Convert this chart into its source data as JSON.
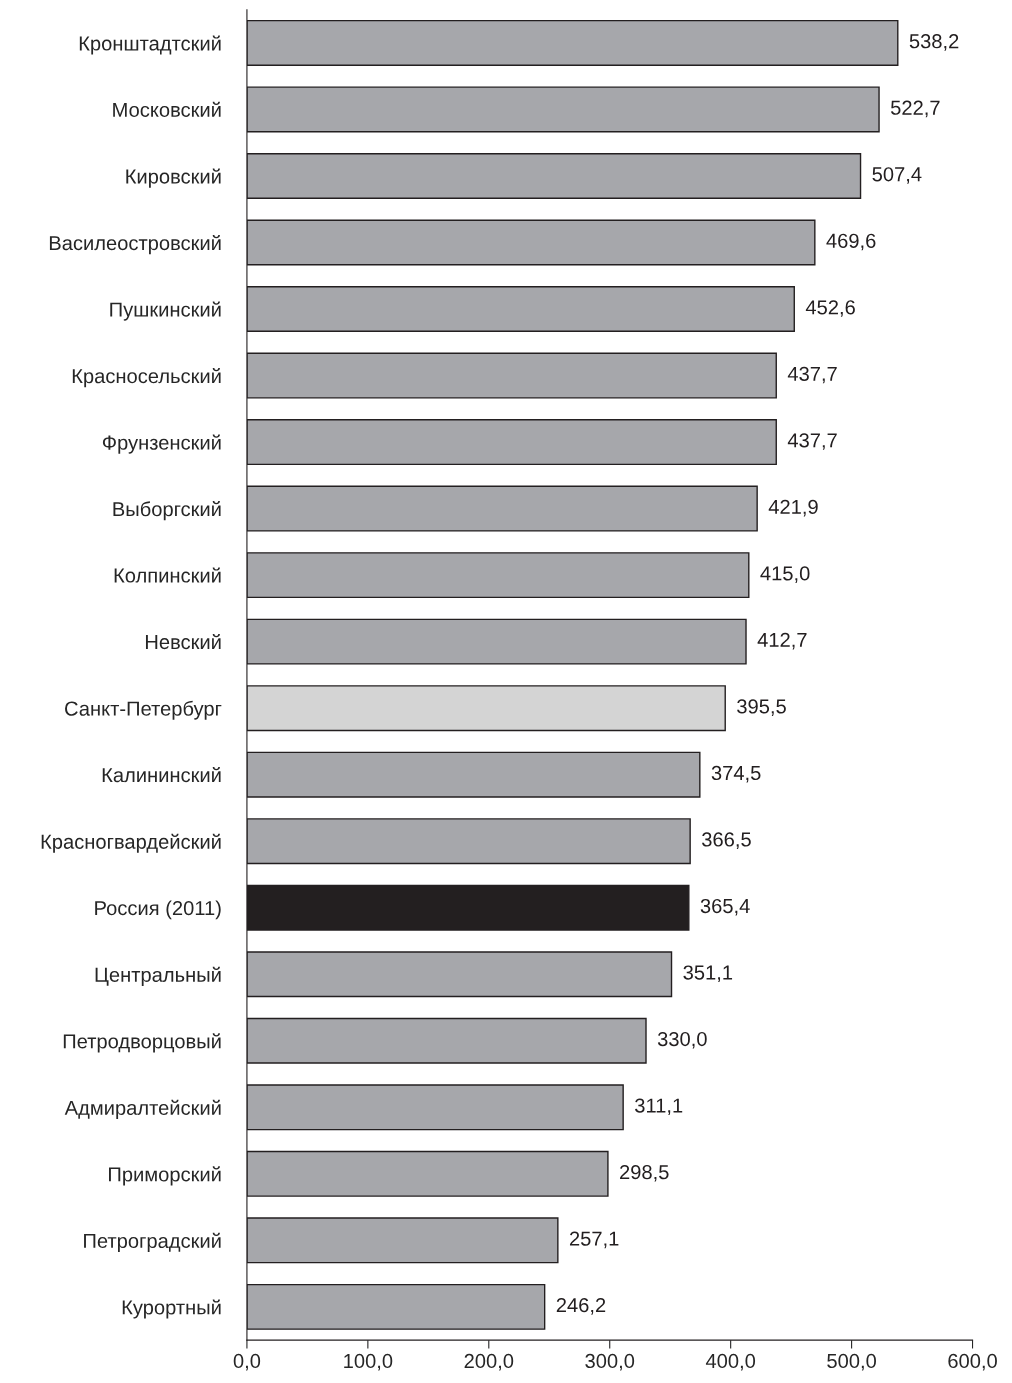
{
  "chart_data": {
    "type": "bar",
    "orientation": "horizontal",
    "categories": [
      "Кронштадтский",
      "Московский",
      "Кировский",
      "Василеостровский",
      "Пушкинский",
      "Красносельский",
      "Фрунзенский",
      "Выборгский",
      "Колпинский",
      "Невский",
      "Санкт-Петербург",
      "Калининский",
      "Красногвардейский",
      "Россия (2011)",
      "Центральный",
      "Петродворцовый",
      "Адмиралтейский",
      "Приморский",
      "Петроградский",
      "Курортный"
    ],
    "values": [
      538.2,
      522.7,
      507.4,
      469.6,
      452.6,
      437.7,
      437.7,
      421.9,
      415.0,
      412.7,
      395.5,
      374.5,
      366.5,
      365.4,
      351.1,
      330.0,
      311.1,
      298.5,
      257.1,
      246.2
    ],
    "value_labels": [
      "538,2",
      "522,7",
      "507,4",
      "469,6",
      "452,6",
      "437,7",
      "437,7",
      "421,9",
      "415,0",
      "412,7",
      "395,5",
      "374,5",
      "366,5",
      "365,4",
      "351,1",
      "330,0",
      "311,1",
      "298,5",
      "257,1",
      "246,2"
    ],
    "colors": [
      "#a6a7ab",
      "#a6a7ab",
      "#a6a7ab",
      "#a6a7ab",
      "#a6a7ab",
      "#a6a7ab",
      "#a6a7ab",
      "#a6a7ab",
      "#a6a7ab",
      "#a6a7ab",
      "#d4d4d4",
      "#a6a7ab",
      "#a6a7ab",
      "#231f20",
      "#a6a7ab",
      "#a6a7ab",
      "#a6a7ab",
      "#a6a7ab",
      "#a6a7ab",
      "#a6a7ab"
    ],
    "xlim": [
      0,
      600
    ],
    "xticks": [
      {
        "value": 0,
        "label": "0,0"
      },
      {
        "value": 100,
        "label": "100,0"
      },
      {
        "value": 200,
        "label": "200,0"
      },
      {
        "value": 300,
        "label": "300,0"
      },
      {
        "value": 400,
        "label": "400,0"
      },
      {
        "value": 500,
        "label": "500,0"
      },
      {
        "value": 600,
        "label": "600,0"
      }
    ],
    "grid": false,
    "legend": false
  }
}
